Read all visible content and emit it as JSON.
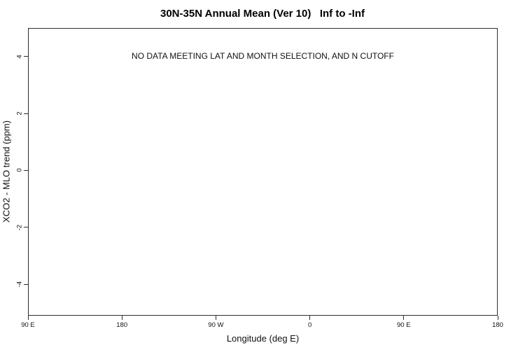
{
  "chart_data": {
    "type": "scatter",
    "title": "30N-35N Annual Mean (Ver 10)   Inf to -Inf",
    "xlabel": "Longitude (deg E)",
    "ylabel": "XCO2 - MLO trend (ppm)",
    "annotation": "NO DATA MEETING LAT AND MONTH SELECTION, AND N CUTOFF",
    "series": [],
    "grid": false,
    "legend": "none",
    "x_axis": {
      "lim": [
        90,
        540
      ],
      "tick_values": [
        90,
        180,
        270,
        360,
        450,
        540
      ],
      "tick_labels": [
        "90 E",
        "180",
        "90 W",
        "0",
        "90 E",
        "180"
      ]
    },
    "y_axis": {
      "lim": [
        -5.1,
        5.0
      ],
      "tick_values": [
        -4,
        -2,
        0,
        2,
        4
      ],
      "tick_labels": [
        "-4",
        "-2",
        "0",
        "2",
        "4"
      ]
    }
  },
  "colors": {
    "background": "#ffffff",
    "axis_line": "#2f2f2f",
    "text": "#111111",
    "title_text": "#000000"
  }
}
